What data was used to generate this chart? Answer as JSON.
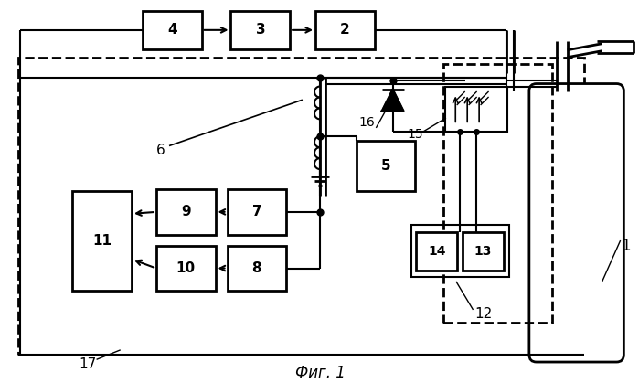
{
  "title": "Фиг. 1",
  "bg": "#ffffff"
}
